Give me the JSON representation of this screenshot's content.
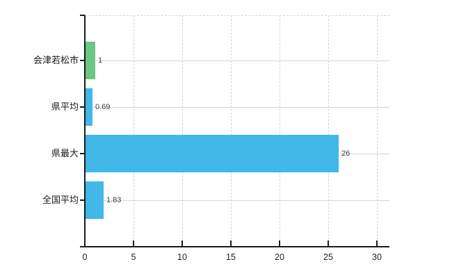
{
  "chart_data": {
    "type": "bar",
    "orientation": "horizontal",
    "title": "",
    "xlabel": "",
    "ylabel": "",
    "legend": "none",
    "grid": "on",
    "categories": [
      "会津若松市",
      "県平均",
      "県最大",
      "全国平均"
    ],
    "values": [
      1,
      0.69,
      26,
      1.83
    ],
    "value_labels": [
      "1",
      "0.69",
      "26",
      "1.83"
    ],
    "bar_colors": [
      "#6bc783",
      "#41b8e8",
      "#41b8e8",
      "#41b8e8"
    ],
    "xlim": [
      0,
      30
    ],
    "xticks": [
      0,
      5,
      10,
      15,
      20,
      25,
      30
    ],
    "xtick_labels": [
      "0",
      "5",
      "10",
      "15",
      "20",
      "25",
      "30"
    ],
    "colors": {
      "background": "#ffffff",
      "axis": "#1a1a1a",
      "grid_vertical_dashed": "#d4d4d4",
      "grid_horizontal_solid": "#d2d7d2",
      "plot_top_border_dashed": "#d4d4d4",
      "tick_label_text": "#1f1f1f",
      "category_label_text": "#1a1a1a",
      "value_label_text": "#3d3d3d",
      "bar_green": "#6bc783",
      "bar_blue": "#41b8e8"
    }
  }
}
